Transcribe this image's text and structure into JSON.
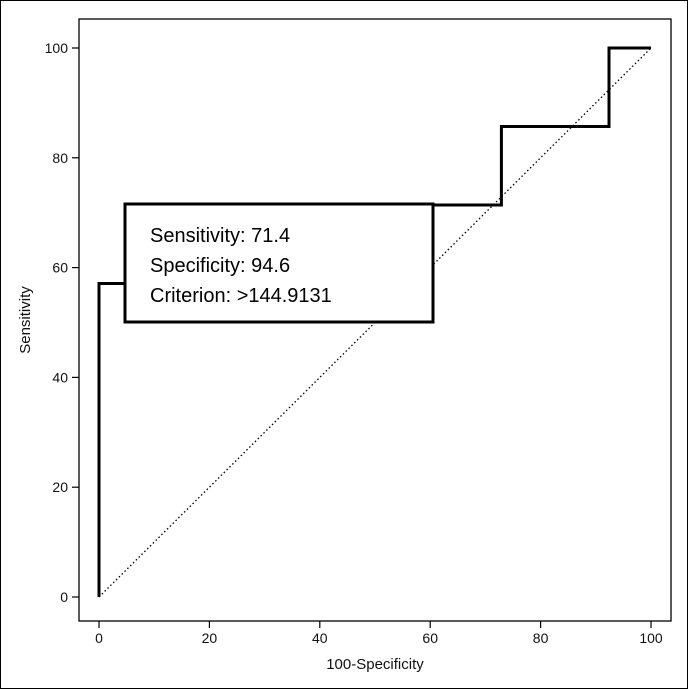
{
  "chart_data": {
    "type": "line",
    "xlabel": "100-Specificity",
    "ylabel": "Sensitivity",
    "xlim": [
      0,
      100
    ],
    "ylim": [
      0,
      100
    ],
    "xticks": [
      "0",
      "20",
      "40",
      "60",
      "80",
      "100"
    ],
    "yticks": [
      "0",
      "20",
      "40",
      "60",
      "80",
      "100"
    ],
    "grid": false,
    "series": [
      {
        "style": "solid-thick",
        "x": [
          0,
          0,
          5.4,
          5.4,
          72.9,
          72.9,
          92.4,
          92.4,
          100
        ],
        "y": [
          0,
          57.1,
          57.1,
          71.4,
          71.4,
          85.7,
          85.7,
          100,
          100
        ]
      },
      {
        "style": "dotted",
        "x": [
          0,
          100
        ],
        "y": [
          0,
          100
        ]
      }
    ],
    "annotation": {
      "lines": [
        "Sensitivity: 71.4",
        "Specificity: 94.6",
        "Criterion: >144.9131"
      ]
    }
  }
}
